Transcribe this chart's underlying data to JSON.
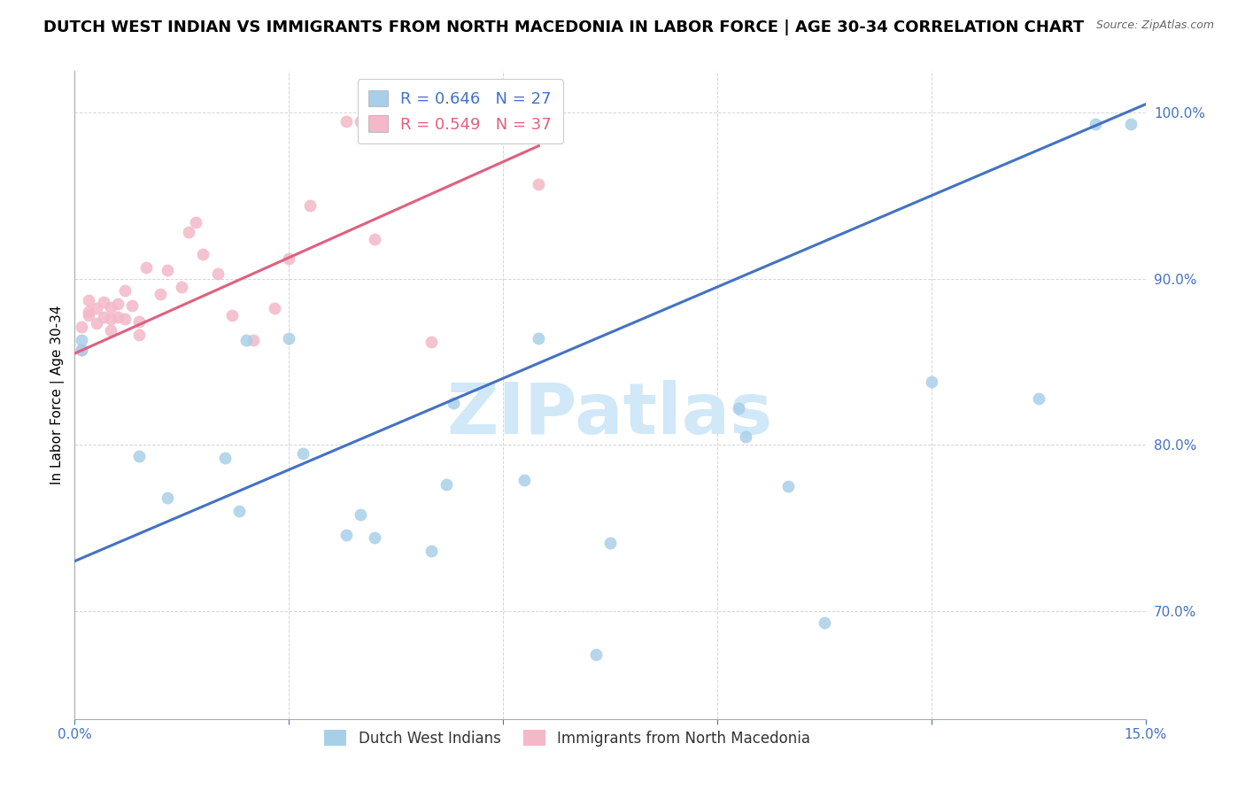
{
  "title": "DUTCH WEST INDIAN VS IMMIGRANTS FROM NORTH MACEDONIA IN LABOR FORCE | AGE 30-34 CORRELATION CHART",
  "source": "Source: ZipAtlas.com",
  "ylabel": "In Labor Force | Age 30-34",
  "xmin": 0.0,
  "xmax": 0.15,
  "ymin": 0.635,
  "ymax": 1.025,
  "yticks": [
    0.7,
    0.8,
    0.9,
    1.0
  ],
  "ytick_labels": [
    "70.0%",
    "80.0%",
    "90.0%",
    "100.0%"
  ],
  "xticks": [
    0.0,
    0.03,
    0.06,
    0.09,
    0.12,
    0.15
  ],
  "xtick_labels": [
    "0.0%",
    "",
    "",
    "",
    "",
    "15.0%"
  ],
  "blue_color": "#a8cfe8",
  "pink_color": "#f4b8c8",
  "blue_line_color": "#4472c4",
  "pink_line_color": "#e0607e",
  "legend_blue_label": "Dutch West Indians",
  "legend_pink_label": "Immigrants from North Macedonia",
  "r_blue": 0.646,
  "n_blue": 27,
  "r_pink": 0.549,
  "n_pink": 37,
  "blue_scatter_x": [
    0.001,
    0.001,
    0.009,
    0.013,
    0.021,
    0.023,
    0.024,
    0.03,
    0.032,
    0.038,
    0.04,
    0.042,
    0.05,
    0.052,
    0.053,
    0.063,
    0.065,
    0.073,
    0.075,
    0.093,
    0.094,
    0.1,
    0.105,
    0.12,
    0.135,
    0.143,
    0.148
  ],
  "blue_scatter_y": [
    0.857,
    0.863,
    0.793,
    0.768,
    0.792,
    0.76,
    0.863,
    0.864,
    0.795,
    0.746,
    0.758,
    0.744,
    0.736,
    0.776,
    0.825,
    0.779,
    0.864,
    0.674,
    0.741,
    0.822,
    0.805,
    0.775,
    0.693,
    0.838,
    0.828,
    0.993,
    0.993
  ],
  "pink_scatter_x": [
    0.001,
    0.001,
    0.002,
    0.002,
    0.002,
    0.003,
    0.003,
    0.004,
    0.004,
    0.005,
    0.005,
    0.005,
    0.006,
    0.006,
    0.007,
    0.007,
    0.008,
    0.009,
    0.009,
    0.01,
    0.012,
    0.013,
    0.015,
    0.016,
    0.017,
    0.018,
    0.02,
    0.022,
    0.025,
    0.028,
    0.03,
    0.033,
    0.038,
    0.04,
    0.042,
    0.05,
    0.065
  ],
  "pink_scatter_y": [
    0.857,
    0.871,
    0.878,
    0.88,
    0.887,
    0.873,
    0.882,
    0.877,
    0.886,
    0.869,
    0.876,
    0.883,
    0.877,
    0.885,
    0.876,
    0.893,
    0.884,
    0.866,
    0.874,
    0.907,
    0.891,
    0.905,
    0.895,
    0.928,
    0.934,
    0.915,
    0.903,
    0.878,
    0.863,
    0.882,
    0.912,
    0.944,
    0.995,
    0.995,
    0.924,
    0.862,
    0.957
  ],
  "blue_line_x": [
    0.0,
    0.15
  ],
  "blue_line_y": [
    0.73,
    1.005
  ],
  "pink_line_x": [
    0.0,
    0.065
  ],
  "pink_line_y": [
    0.855,
    0.98
  ],
  "watermark_text": "ZIPatlas",
  "watermark_color": "#d0e8f8",
  "background_color": "#ffffff",
  "grid_color": "#cccccc",
  "axis_color": "#4472c4",
  "title_fontsize": 13,
  "label_fontsize": 11,
  "tick_fontsize": 11,
  "marker_size": 100
}
